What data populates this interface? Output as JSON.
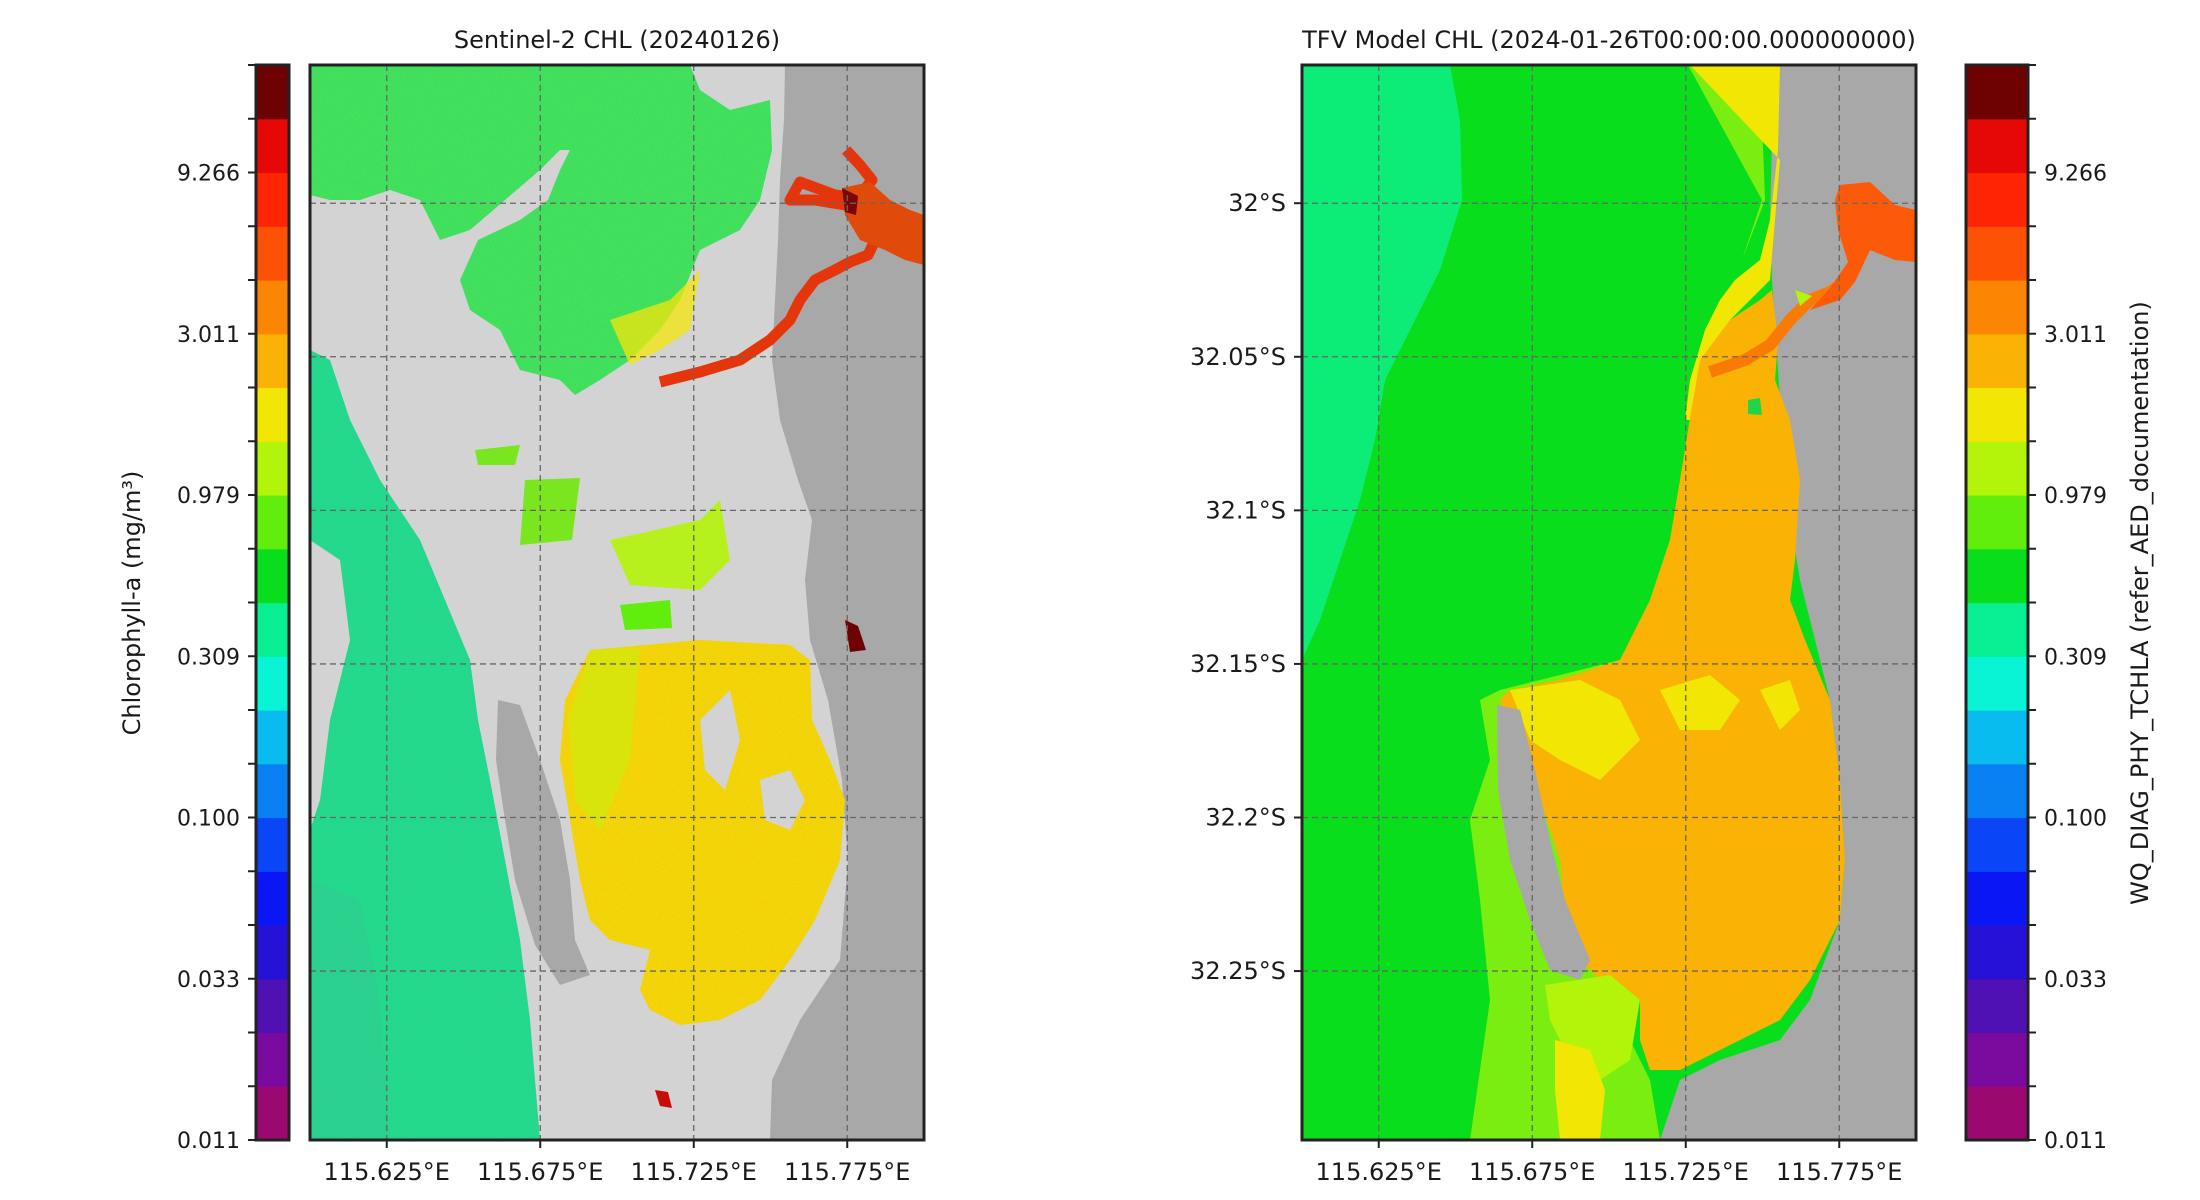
{
  "chart_data": [
    {
      "type": "heatmap",
      "title": "Sentinel-2 CHL (20240126)",
      "colorbar": {
        "label": "Chlorophyll-a (mg/m³)",
        "tick_labels": [
          "9.266",
          "3.011",
          "0.979",
          "0.309",
          "0.100",
          "0.033",
          "0.011"
        ],
        "scale": "log",
        "range": [
          0.011,
          28.5
        ],
        "position": "left"
      },
      "x_tick_labels": [
        "115.625°E",
        "115.675°E",
        "115.725°E",
        "115.775°E"
      ],
      "x_ticks": [
        115.625,
        115.675,
        115.725,
        115.775
      ],
      "y_ticks": [
        -32.0,
        -32.05,
        -32.1,
        -32.15,
        -32.2,
        -32.25
      ],
      "y_tick_labels": [],
      "xlim": [
        115.6,
        115.8
      ],
      "ylim": [
        -32.305,
        -31.955
      ],
      "grid": true
    },
    {
      "type": "heatmap",
      "title": "TFV Model CHL (2024-01-26T00:00:00.000000000)",
      "colorbar": {
        "label": "WQ_DIAG_PHY_TCHLA (refer_AED_documentation)",
        "tick_labels": [
          "9.266",
          "3.011",
          "0.979",
          "0.309",
          "0.100",
          "0.033",
          "0.011"
        ],
        "scale": "log",
        "range": [
          0.011,
          28.5
        ],
        "position": "right"
      },
      "x_tick_labels": [
        "115.625°E",
        "115.675°E",
        "115.725°E",
        "115.775°E"
      ],
      "x_ticks": [
        115.625,
        115.675,
        115.725,
        115.775
      ],
      "y_ticks": [
        -32.0,
        -32.05,
        -32.1,
        -32.15,
        -32.2,
        -32.25
      ],
      "y_tick_labels": [
        "32°S",
        "32.05°S",
        "32.1°S",
        "32.15°S",
        "32.2°S",
        "32.25°S"
      ],
      "xlim": [
        115.6,
        115.8
      ],
      "ylim": [
        -32.305,
        -31.955
      ],
      "grid": true
    }
  ],
  "colormap": [
    "#9a0870",
    "#7a0a9e",
    "#4f10b4",
    "#2612d6",
    "#0a16f4",
    "#0a46f8",
    "#0880f2",
    "#08bcf0",
    "#08f4d4",
    "#08ee92",
    "#08de1c",
    "#62ee0c",
    "#b2f40a",
    "#f2e604",
    "#fab204",
    "#fc8604",
    "#fc5004",
    "#fe2404",
    "#e60806",
    "#6e0202"
  ],
  "colors": {
    "land": "#a8a8a8",
    "shallow_mask": "#d3d3d3",
    "grid": "#666666",
    "frame": "#222222"
  }
}
